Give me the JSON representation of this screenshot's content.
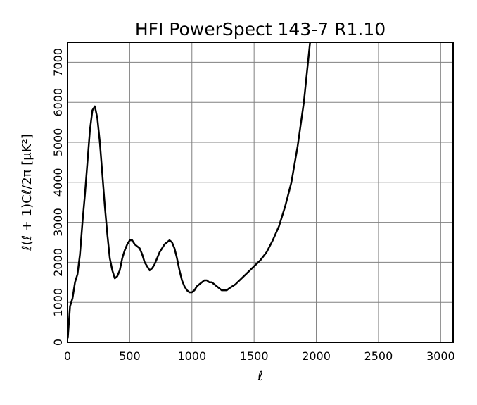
{
  "chart_data": {
    "type": "line",
    "title": "HFI PowerSpect 143-7 R1.10",
    "xlabel": "ℓ",
    "ylabel": "ℓ(ℓ + 1)Cℓ/2π  [μK²]",
    "x": [
      2,
      20,
      40,
      60,
      80,
      100,
      120,
      140,
      160,
      180,
      200,
      220,
      240,
      260,
      280,
      300,
      320,
      340,
      360,
      380,
      400,
      420,
      440,
      460,
      480,
      500,
      520,
      540,
      560,
      580,
      600,
      620,
      640,
      660,
      680,
      700,
      720,
      740,
      760,
      780,
      800,
      820,
      840,
      860,
      880,
      900,
      920,
      940,
      960,
      980,
      1000,
      1020,
      1040,
      1060,
      1080,
      1100,
      1120,
      1140,
      1160,
      1180,
      1200,
      1220,
      1240,
      1260,
      1280,
      1300,
      1350,
      1400,
      1450,
      1500,
      1550,
      1600,
      1650,
      1700,
      1750,
      1800,
      1850,
      1900,
      1950
    ],
    "series": [
      {
        "color": "#000000",
        "values": [
          100,
          900,
          1100,
          1500,
          1700,
          2200,
          3000,
          3700,
          4500,
          5300,
          5800,
          5900,
          5600,
          5000,
          4200,
          3400,
          2700,
          2100,
          1800,
          1600,
          1650,
          1800,
          2100,
          2300,
          2450,
          2550,
          2550,
          2450,
          2400,
          2350,
          2200,
          2000,
          1900,
          1800,
          1850,
          1950,
          2100,
          2250,
          2350,
          2450,
          2500,
          2550,
          2500,
          2350,
          2100,
          1800,
          1550,
          1400,
          1300,
          1250,
          1250,
          1300,
          1400,
          1450,
          1500,
          1550,
          1550,
          1500,
          1500,
          1450,
          1400,
          1350,
          1300,
          1300,
          1300,
          1350,
          1450,
          1600,
          1750,
          1900,
          2050,
          2250,
          2550,
          2900,
          3400,
          4000,
          4900,
          6000,
          7500
        ]
      }
    ],
    "xlim": [
      0,
      3100
    ],
    "ylim": [
      0,
      7500
    ],
    "xticks": [
      0,
      500,
      1000,
      1500,
      2000,
      2500,
      3000
    ],
    "yticks": [
      0,
      1000,
      2000,
      3000,
      4000,
      5000,
      6000,
      7000
    ],
    "grid": true
  }
}
